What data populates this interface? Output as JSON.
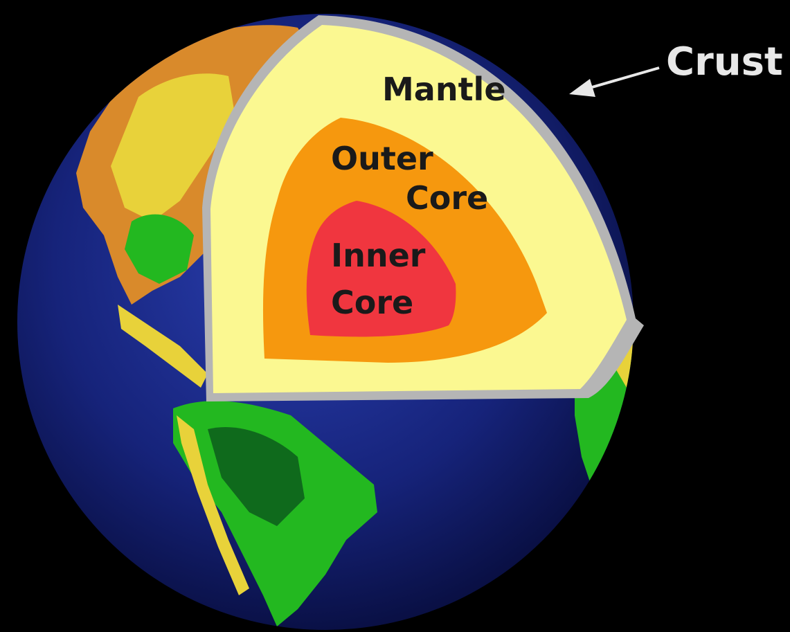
{
  "diagram": {
    "labels": {
      "crust": "Crust",
      "mantle": "Mantle",
      "outer_core_line1": "Outer",
      "outer_core_line2": "Core",
      "inner_core_line1": "Inner",
      "inner_core_line2": "Core"
    },
    "colors": {
      "background": "#000000",
      "ocean": "#16237a",
      "land_green": "#23b820",
      "land_yellow": "#e8d23a",
      "land_orange": "#d98a2b",
      "crust_rim": "#b5b5b5",
      "mantle": "#fbf891",
      "outer_core": "#f6980e",
      "inner_core": "#f0363f",
      "label_text": "#1a1a1a",
      "crust_label_text": "#e8e8e8",
      "arrow": "#e8e8e8"
    }
  }
}
